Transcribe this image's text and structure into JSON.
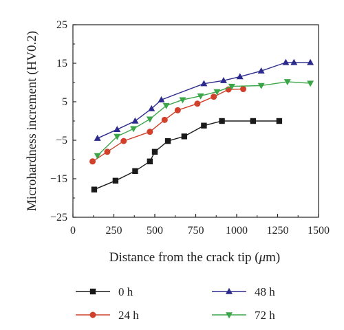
{
  "chart_data": {
    "type": "line",
    "title": "",
    "xlabel_pre": "Distance from the crack tip (",
    "xlabel_mu": "μ",
    "xlabel_post": "m)",
    "ylabel": "Microhardness increment (HV0.2)",
    "xlim": [
      0,
      1500
    ],
    "ylim": [
      -25,
      25
    ],
    "xticks": [
      0,
      250,
      500,
      750,
      1000,
      1250,
      1500
    ],
    "yticks": [
      25,
      15,
      5,
      -5,
      -15,
      -25
    ],
    "ytick_labels": [
      "25",
      "15",
      "5",
      "−5",
      "−15",
      "−25"
    ],
    "grid": false,
    "legend_position": "bottom",
    "series": [
      {
        "name": "0 h",
        "marker": "square",
        "color": "#1a1a1a",
        "x": [
          130,
          260,
          380,
          470,
          500,
          580,
          680,
          800,
          910,
          1100,
          1260
        ],
        "y": [
          -17.8,
          -15.5,
          -13,
          -10.5,
          -8,
          -5.2,
          -4,
          -1.2,
          0,
          0,
          0
        ]
      },
      {
        "name": "24 h",
        "marker": "circle",
        "color": "#d0402b",
        "x": [
          120,
          210,
          310,
          470,
          560,
          640,
          760,
          860,
          950,
          1040
        ],
        "y": [
          -10.5,
          -8,
          -5.2,
          -2.8,
          0.3,
          2.8,
          4.5,
          6.3,
          8.2,
          8.3
        ]
      },
      {
        "name": "48 h",
        "marker": "triangle-up",
        "color": "#2c2a8c",
        "x": [
          150,
          270,
          380,
          480,
          540,
          800,
          920,
          1020,
          1150,
          1300,
          1350,
          1450
        ],
        "y": [
          -4.5,
          -2.2,
          0,
          3.2,
          5.5,
          9.7,
          10.5,
          11.5,
          13,
          15.2,
          15.2,
          15.2
        ]
      },
      {
        "name": "72 h",
        "marker": "triangle-down",
        "color": "#3aa648",
        "x": [
          150,
          270,
          370,
          470,
          570,
          670,
          780,
          880,
          970,
          1150,
          1310,
          1450
        ],
        "y": [
          -9,
          -4,
          -2,
          0.5,
          4,
          5.5,
          6.5,
          7.6,
          9,
          9.2,
          10.2,
          9.8
        ]
      }
    ]
  }
}
